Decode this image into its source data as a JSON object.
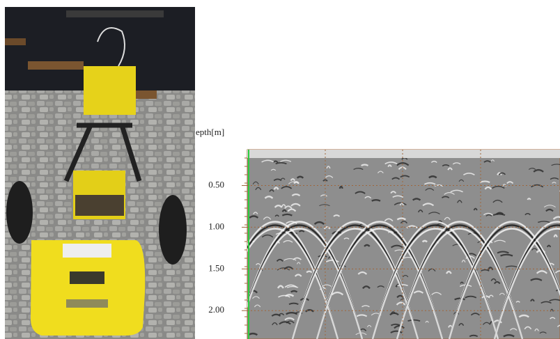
{
  "chart_data": {
    "type": "radargram",
    "y_label": "epth[m]",
    "ylim": [
      0.07,
      2.34
    ],
    "yticks": [
      {
        "value": 0.5,
        "label": "0.50"
      },
      {
        "value": 1.0,
        "label": "1.00"
      },
      {
        "value": 1.5,
        "label": "1.50"
      },
      {
        "value": 2.0,
        "label": "2.00"
      }
    ],
    "grid": true,
    "grid_color": "#a0663a",
    "marker_color": "#2ecc40"
  }
}
